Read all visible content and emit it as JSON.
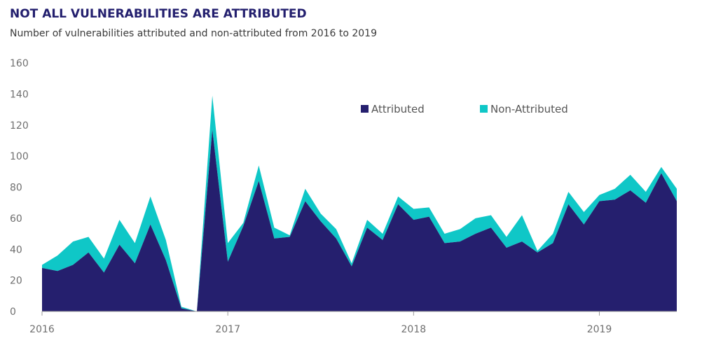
{
  "title": "NOT ALL VULNERABILITIES ARE ATTRIBUTED",
  "subtitle": "Number of vulnerabilities attributed and non-attributed from 2016 to 2019",
  "chart_data": {
    "type": "area",
    "stacked": true,
    "title": "NOT ALL VULNERABILITIES ARE ATTRIBUTED",
    "subtitle": "Number of vulnerabilities attributed and non-attributed from 2016 to 2019",
    "xlabel": "",
    "ylabel": "",
    "x_ticks": [
      "2016",
      "2017",
      "2018",
      "2019"
    ],
    "ylim": [
      0,
      160
    ],
    "y_ticks": [
      0,
      20,
      40,
      60,
      80,
      100,
      120,
      140,
      160
    ],
    "grid": false,
    "legend_position": "top-right",
    "x": [
      "2016-01",
      "2016-02",
      "2016-03",
      "2016-04",
      "2016-05",
      "2016-06",
      "2016-07",
      "2016-08",
      "2016-09",
      "2016-10",
      "2016-11",
      "2016-12",
      "2017-01",
      "2017-02",
      "2017-03",
      "2017-04",
      "2017-05",
      "2017-06",
      "2017-07",
      "2017-08",
      "2017-09",
      "2017-10",
      "2017-11",
      "2017-12",
      "2018-01",
      "2018-02",
      "2018-03",
      "2018-04",
      "2018-05",
      "2018-06",
      "2018-07",
      "2018-08",
      "2018-09",
      "2018-10",
      "2018-11",
      "2018-12",
      "2019-01",
      "2019-02",
      "2019-03",
      "2019-04",
      "2019-05",
      "2019-06"
    ],
    "series": [
      {
        "name": "Attributed",
        "color": "#251f6e",
        "values": [
          28,
          26,
          30,
          38,
          25,
          43,
          31,
          56,
          33,
          2,
          0,
          117,
          32,
          55,
          84,
          47,
          48,
          71,
          58,
          47,
          29,
          54,
          46,
          69,
          59,
          61,
          44,
          45,
          50,
          54,
          41,
          45,
          38,
          44,
          69,
          56,
          71,
          72,
          78,
          70,
          89,
          71
        ]
      },
      {
        "name": "Non-Attributed",
        "color": "#0fc7c7",
        "values": [
          2,
          10,
          15,
          10,
          9,
          16,
          13,
          18,
          13,
          1,
          0,
          22,
          12,
          2,
          10,
          7,
          1,
          8,
          5,
          6,
          2,
          5,
          4,
          5,
          7,
          6,
          6,
          8,
          10,
          8,
          7,
          17,
          1,
          6,
          8,
          8,
          4,
          7,
          10,
          7,
          4,
          8
        ]
      }
    ]
  }
}
